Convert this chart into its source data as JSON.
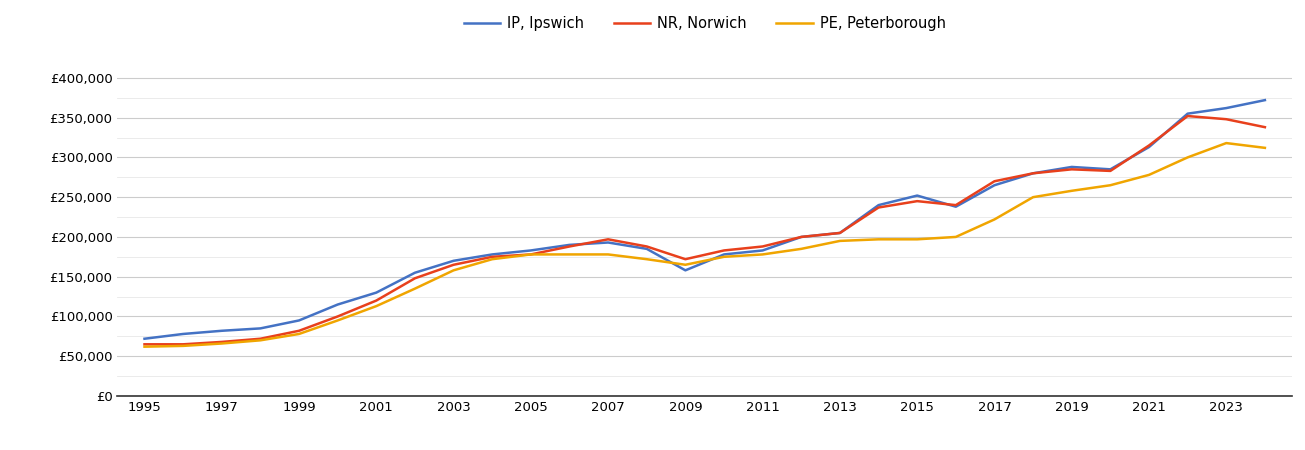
{
  "series": {
    "IP, Ipswich": {
      "color": "#4472C4",
      "data": {
        "1995": 72000,
        "1996": 78000,
        "1997": 82000,
        "1998": 85000,
        "1999": 95000,
        "2000": 115000,
        "2001": 130000,
        "2002": 155000,
        "2003": 170000,
        "2004": 178000,
        "2005": 183000,
        "2006": 190000,
        "2007": 193000,
        "2008": 185000,
        "2009": 158000,
        "2010": 178000,
        "2011": 183000,
        "2012": 200000,
        "2013": 205000,
        "2014": 240000,
        "2015": 252000,
        "2016": 238000,
        "2017": 265000,
        "2018": 280000,
        "2019": 288000,
        "2020": 285000,
        "2021": 313000,
        "2022": 355000,
        "2023": 362000,
        "2024": 372000
      }
    },
    "NR, Norwich": {
      "color": "#E8401C",
      "data": {
        "1995": 65000,
        "1996": 65000,
        "1997": 68000,
        "1998": 72000,
        "1999": 82000,
        "2000": 100000,
        "2001": 120000,
        "2002": 148000,
        "2003": 165000,
        "2004": 175000,
        "2005": 178000,
        "2006": 188000,
        "2007": 197000,
        "2008": 188000,
        "2009": 172000,
        "2010": 183000,
        "2011": 188000,
        "2012": 200000,
        "2013": 205000,
        "2014": 237000,
        "2015": 245000,
        "2016": 240000,
        "2017": 270000,
        "2018": 280000,
        "2019": 285000,
        "2020": 283000,
        "2021": 315000,
        "2022": 352000,
        "2023": 348000,
        "2024": 338000
      }
    },
    "PE, Peterborough": {
      "color": "#F0A500",
      "data": {
        "1995": 62000,
        "1996": 63000,
        "1997": 66000,
        "1998": 70000,
        "1999": 78000,
        "2000": 95000,
        "2001": 113000,
        "2002": 135000,
        "2003": 158000,
        "2004": 172000,
        "2005": 178000,
        "2006": 178000,
        "2007": 178000,
        "2008": 172000,
        "2009": 165000,
        "2010": 175000,
        "2011": 178000,
        "2012": 185000,
        "2013": 195000,
        "2014": 197000,
        "2015": 197000,
        "2016": 200000,
        "2017": 222000,
        "2018": 250000,
        "2019": 258000,
        "2020": 265000,
        "2021": 278000,
        "2022": 300000,
        "2023": 318000,
        "2024": 312000
      }
    }
  },
  "ylim": [
    0,
    430000
  ],
  "yticks": [
    0,
    50000,
    100000,
    150000,
    200000,
    250000,
    300000,
    350000,
    400000
  ],
  "minor_yticks": [
    25000,
    75000,
    125000,
    175000,
    225000,
    275000,
    325000,
    375000
  ],
  "xtick_years": [
    1995,
    1997,
    1999,
    2001,
    2003,
    2005,
    2007,
    2009,
    2011,
    2013,
    2015,
    2017,
    2019,
    2021,
    2023
  ],
  "xlim_left": 1994.3,
  "xlim_right": 2024.7,
  "background_color": "#ffffff",
  "major_grid_color": "#cccccc",
  "minor_grid_color": "#e8e8e8"
}
